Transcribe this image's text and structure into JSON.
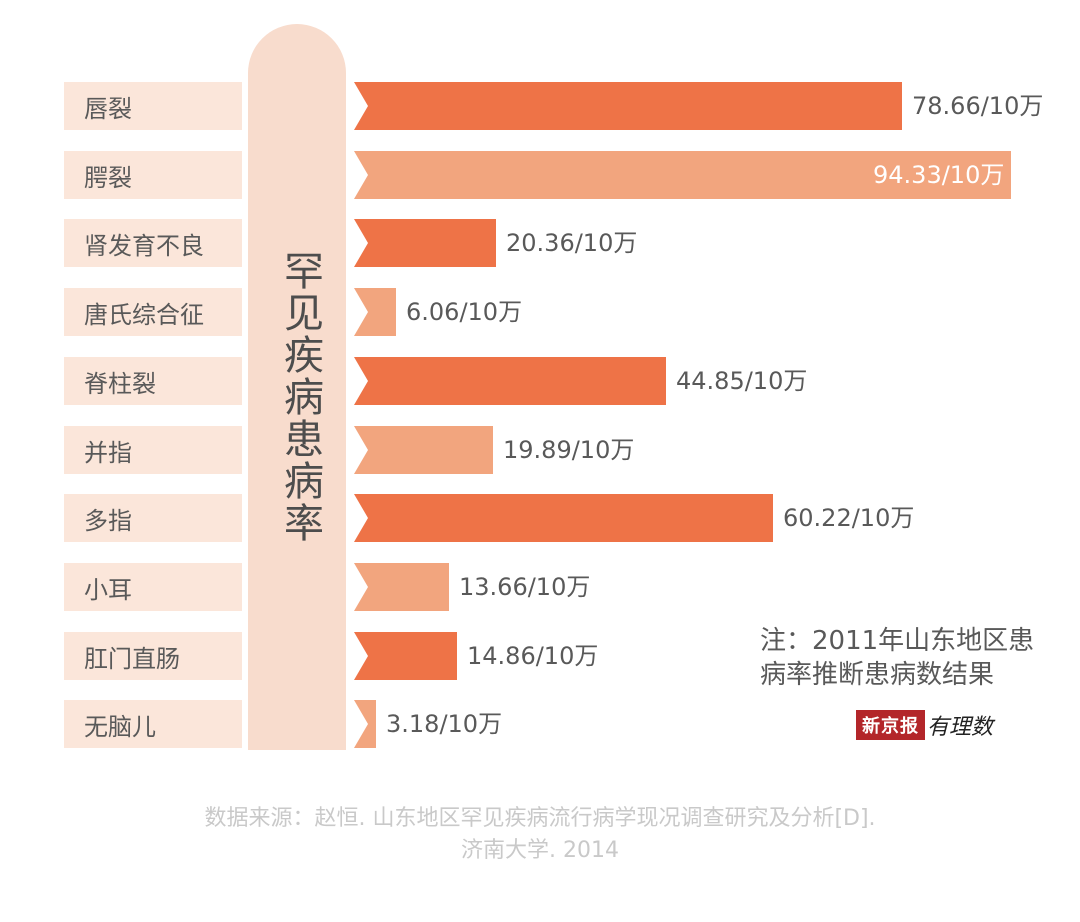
{
  "chart_data": {
    "type": "bar",
    "orientation": "horizontal",
    "title": "罕见疾病患病率",
    "categories": [
      "唇裂",
      "腭裂",
      "肾发育不良",
      "唐氏综合征",
      "脊柱裂",
      "并指",
      "多指",
      "小耳",
      "肛门直肠",
      "无脑儿"
    ],
    "values": [
      78.66,
      94.33,
      20.36,
      6.06,
      44.85,
      19.89,
      60.22,
      13.66,
      14.86,
      3.18
    ],
    "value_labels": [
      "78.66/10万",
      "94.33/10万",
      "20.36/10万",
      "6.06/10万",
      "44.85/10万",
      "19.89/10万",
      "60.22/10万",
      "13.66/10万",
      "14.86/10万",
      "3.18/10万"
    ],
    "xlim": [
      0,
      100
    ],
    "grid": false,
    "colors": {
      "dark_bar": "#ee7347",
      "light_bar": "#f2a57e",
      "label_box": "#fbe6da",
      "pillar": "#f8dccd"
    },
    "bar_shades": [
      "dark",
      "light",
      "dark",
      "light",
      "dark",
      "light",
      "dark",
      "light",
      "dark",
      "light"
    ]
  },
  "note": {
    "line1": "注：2011年山东地区患",
    "line2": "病率推断患病数结果"
  },
  "logo": {
    "brand": "新京报",
    "sub": "有理数"
  },
  "source": {
    "line1": "数据来源：赵恒. 山东地区罕见疾病流行病学现况调查研究及分析[D].",
    "line2": "济南大学. 2014"
  }
}
